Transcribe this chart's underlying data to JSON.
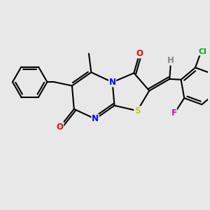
{
  "background_color": "#e8e8e8",
  "bond_color": "#000000",
  "bond_width": 1.5,
  "atom_colors": {
    "N": "#0000ff",
    "O": "#ff0000",
    "S": "#cccc00",
    "Cl": "#00aa00",
    "F": "#dd00dd",
    "H": "#888888",
    "C": "#000000"
  },
  "font_size": 8.5,
  "fig_width": 3.0,
  "fig_height": 3.0,
  "dpi": 100
}
